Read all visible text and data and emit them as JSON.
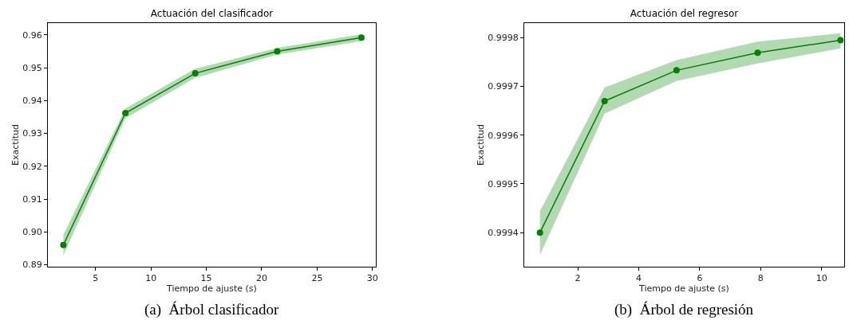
{
  "chart_data": [
    {
      "type": "line",
      "title": "Actuación del clasificador",
      "xlabel": "Tiempo de ajuste (s)",
      "ylabel": "Exactitud",
      "annotations": [
        "(a)  Árbol clasificador"
      ],
      "series": [
        {
          "color": "#008000",
          "x": [
            2.1,
            7.7,
            14.0,
            21.4,
            29.0
          ],
          "values": [
            0.896,
            0.9362,
            0.9483,
            0.955,
            0.9592
          ],
          "lower": [
            0.8929,
            0.9346,
            0.9469,
            0.954,
            0.9581
          ],
          "upper": [
            0.8992,
            0.9376,
            0.9497,
            0.956,
            0.9602
          ]
        }
      ],
      "xlim": [
        0.7,
        30.3
      ],
      "xticks": [
        5,
        10,
        15,
        20,
        25,
        30
      ],
      "ylim": [
        0.8894,
        0.9636
      ],
      "yticks": [
        0.89,
        {
          "value": 0.9,
          "label": "0.90"
        },
        0.91,
        0.92,
        0.93,
        0.94,
        0.95,
        0.96
      ],
      "grid": false,
      "marker": "circle",
      "line_style": "solid"
    },
    {
      "type": "line",
      "title": "Actuación del regresor",
      "xlabel": "Tiempo de ajuste (s)",
      "ylabel": "Exactitud",
      "annotations": [
        "(b)  Árbol de regresión"
      ],
      "series": [
        {
          "color": "#008000",
          "x": [
            0.76,
            2.88,
            5.24,
            7.9,
            10.62
          ],
          "values": [
            0.9994,
            0.99967,
            0.999733,
            0.999769,
            0.999795
          ],
          "lower": [
            0.999354,
            0.999644,
            0.999711,
            0.999747,
            0.999778
          ],
          "upper": [
            0.999444,
            0.999698,
            0.999754,
            0.999792,
            0.999809
          ]
        }
      ],
      "xlim": [
        0.245,
        10.74
      ],
      "xticks": [
        2,
        4,
        6,
        8,
        10
      ],
      "ylim": [
        0.99933,
        0.99983
      ],
      "yticks": [
        0.9994,
        0.9995,
        0.9996,
        0.9997,
        0.9998
      ],
      "grid": false,
      "marker": "circle",
      "line_style": "solid"
    }
  ]
}
